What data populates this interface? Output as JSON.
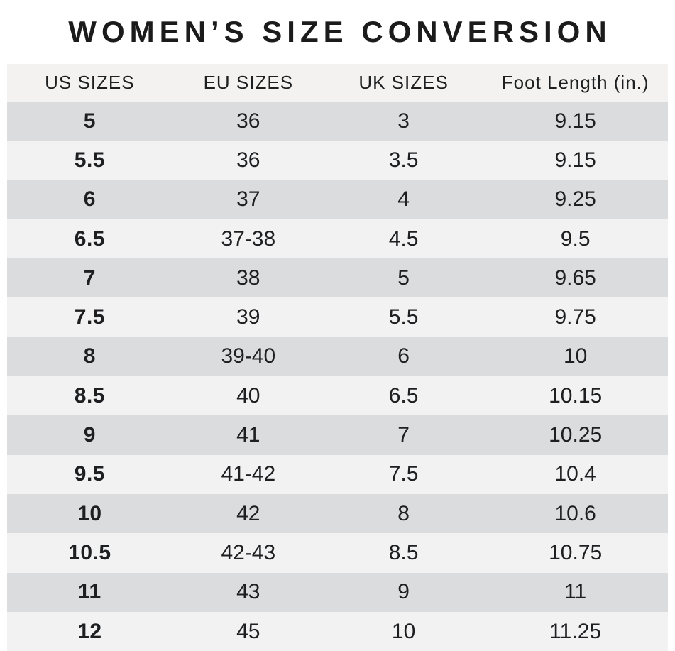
{
  "title": "WOMEN’S SIZE CONVERSION",
  "colors": {
    "row_dark": "#dbdcde",
    "row_light": "#f2f2f3",
    "header_bg": "#f3f2f0",
    "text": "#1e1f21",
    "title_text": "#1b1b1b"
  },
  "chart_data": {
    "type": "table",
    "title": "WOMEN’S SIZE CONVERSION",
    "columns": [
      "US SIZES",
      "EU SIZES",
      "UK SIZES",
      "Foot Length (in.)"
    ],
    "column_keys": [
      "us-size",
      "eu-size",
      "uk-size",
      "foot-length"
    ],
    "rows": [
      [
        "5",
        "36",
        "3",
        "9.15"
      ],
      [
        "5.5",
        "36",
        "3.5",
        "9.15"
      ],
      [
        "6",
        "37",
        "4",
        "9.25"
      ],
      [
        "6.5",
        "37-38",
        "4.5",
        "9.5"
      ],
      [
        "7",
        "38",
        "5",
        "9.65"
      ],
      [
        "7.5",
        "39",
        "5.5",
        "9.75"
      ],
      [
        "8",
        "39-40",
        "6",
        "10"
      ],
      [
        "8.5",
        "40",
        "6.5",
        "10.15"
      ],
      [
        "9",
        "41",
        "7",
        "10.25"
      ],
      [
        "9.5",
        "41-42",
        "7.5",
        "10.4"
      ],
      [
        "10",
        "42",
        "8",
        "10.6"
      ],
      [
        "10.5",
        "42-43",
        "8.5",
        "10.75"
      ],
      [
        "11",
        "43",
        "9",
        "11"
      ],
      [
        "12",
        "45",
        "10",
        "11.25"
      ]
    ]
  }
}
